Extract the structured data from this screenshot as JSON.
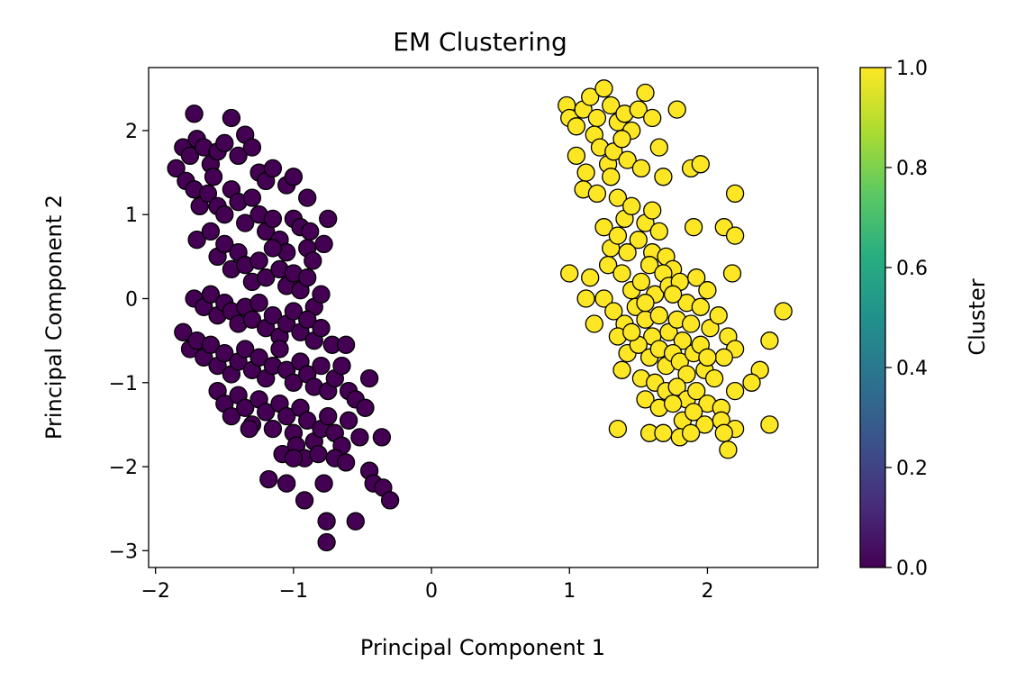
{
  "chart_data": {
    "type": "scatter",
    "title": "EM Clustering",
    "xlabel": "Principal Component 1",
    "ylabel": "Principal Component 2",
    "xlim": [
      -2.05,
      2.8
    ],
    "ylim": [
      -3.2,
      2.75
    ],
    "xticks": [
      -2,
      -1,
      0,
      1,
      2
    ],
    "xtick_labels": [
      "−2",
      "−1",
      "0",
      "1",
      "2"
    ],
    "yticks": [
      -3,
      -2,
      -1,
      0,
      1,
      2
    ],
    "ytick_labels": [
      "−3",
      "−2",
      "−1",
      "0",
      "1",
      "2"
    ],
    "grid": false,
    "legend": "none",
    "colorbar": {
      "label": "Cluster",
      "colormap": "viridis",
      "range": [
        0,
        1
      ],
      "ticks": [
        0,
        0.2,
        0.4,
        0.6,
        0.8,
        1.0
      ],
      "tick_labels": [
        "0.0",
        "0.2",
        "0.4",
        "0.6",
        "0.8",
        "1.0"
      ]
    },
    "colors": {
      "cluster_0": "#440154",
      "cluster_1": "#fde725",
      "edge": "#000000"
    },
    "series": [
      {
        "cluster": 0,
        "color": "#440154",
        "points": [
          [
            -1.85,
            1.55
          ],
          [
            -1.8,
            1.8
          ],
          [
            -1.75,
            1.7
          ],
          [
            -1.72,
            2.2
          ],
          [
            -1.7,
            1.9
          ],
          [
            -1.65,
            1.8
          ],
          [
            -1.6,
            1.6
          ],
          [
            -1.55,
            1.75
          ],
          [
            -1.5,
            1.85
          ],
          [
            -1.45,
            2.15
          ],
          [
            -1.4,
            1.7
          ],
          [
            -1.35,
            1.95
          ],
          [
            -1.3,
            1.8
          ],
          [
            -1.25,
            1.5
          ],
          [
            -1.2,
            1.4
          ],
          [
            -1.15,
            1.55
          ],
          [
            -1.05,
            1.35
          ],
          [
            -1.0,
            1.45
          ],
          [
            -0.9,
            1.2
          ],
          [
            -0.75,
            0.95
          ],
          [
            -1.78,
            1.4
          ],
          [
            -1.72,
            1.3
          ],
          [
            -1.68,
            1.1
          ],
          [
            -1.62,
            1.25
          ],
          [
            -1.58,
            1.45
          ],
          [
            -1.55,
            1.1
          ],
          [
            -1.5,
            1.0
          ],
          [
            -1.45,
            1.3
          ],
          [
            -1.4,
            1.15
          ],
          [
            -1.35,
            0.9
          ],
          [
            -1.3,
            1.2
          ],
          [
            -1.25,
            1.0
          ],
          [
            -1.2,
            0.8
          ],
          [
            -1.15,
            0.95
          ],
          [
            -1.1,
            0.7
          ],
          [
            -1.05,
            0.55
          ],
          [
            -1.0,
            0.95
          ],
          [
            -0.95,
            0.85
          ],
          [
            -0.9,
            0.6
          ],
          [
            -0.88,
            0.8
          ],
          [
            -0.86,
            0.45
          ],
          [
            -0.78,
            0.65
          ],
          [
            -1.7,
            0.7
          ],
          [
            -1.6,
            0.8
          ],
          [
            -1.55,
            0.5
          ],
          [
            -1.5,
            0.65
          ],
          [
            -1.45,
            0.35
          ],
          [
            -1.4,
            0.55
          ],
          [
            -1.35,
            0.4
          ],
          [
            -1.3,
            0.2
          ],
          [
            -1.25,
            0.45
          ],
          [
            -1.2,
            0.25
          ],
          [
            -1.15,
            0.6
          ],
          [
            -1.1,
            0.35
          ],
          [
            -1.05,
            0.15
          ],
          [
            -1.0,
            0.3
          ],
          [
            -0.95,
            0.1
          ],
          [
            -0.9,
            0.25
          ],
          [
            -0.85,
            -0.1
          ],
          [
            -0.8,
            0.05
          ],
          [
            -1.72,
            0.0
          ],
          [
            -1.65,
            -0.1
          ],
          [
            -1.6,
            0.05
          ],
          [
            -1.55,
            -0.2
          ],
          [
            -1.5,
            -0.05
          ],
          [
            -1.45,
            -0.15
          ],
          [
            -1.4,
            -0.3
          ],
          [
            -1.35,
            -0.1
          ],
          [
            -1.3,
            -0.25
          ],
          [
            -1.25,
            -0.05
          ],
          [
            -1.2,
            -0.35
          ],
          [
            -1.15,
            -0.2
          ],
          [
            -1.1,
            -0.45
          ],
          [
            -1.05,
            -0.3
          ],
          [
            -1.0,
            -0.15
          ],
          [
            -0.95,
            -0.4
          ],
          [
            -0.9,
            -0.25
          ],
          [
            -0.85,
            -0.5
          ],
          [
            -0.8,
            -0.35
          ],
          [
            -0.72,
            -0.55
          ],
          [
            -0.62,
            -0.55
          ],
          [
            -1.8,
            -0.4
          ],
          [
            -1.75,
            -0.6
          ],
          [
            -1.7,
            -0.5
          ],
          [
            -1.65,
            -0.7
          ],
          [
            -1.6,
            -0.55
          ],
          [
            -1.55,
            -0.8
          ],
          [
            -1.5,
            -0.65
          ],
          [
            -1.45,
            -0.9
          ],
          [
            -1.4,
            -0.75
          ],
          [
            -1.35,
            -0.6
          ],
          [
            -1.3,
            -0.85
          ],
          [
            -1.25,
            -0.7
          ],
          [
            -1.2,
            -0.95
          ],
          [
            -1.15,
            -0.8
          ],
          [
            -1.1,
            -0.6
          ],
          [
            -1.05,
            -0.85
          ],
          [
            -1.0,
            -1.0
          ],
          [
            -0.95,
            -0.75
          ],
          [
            -0.9,
            -0.9
          ],
          [
            -0.85,
            -1.05
          ],
          [
            -0.8,
            -0.8
          ],
          [
            -0.75,
            -1.1
          ],
          [
            -0.7,
            -0.95
          ],
          [
            -0.65,
            -0.8
          ],
          [
            -0.6,
            -1.1
          ],
          [
            -0.55,
            -1.2
          ],
          [
            -0.45,
            -0.95
          ],
          [
            -1.55,
            -1.1
          ],
          [
            -1.5,
            -1.25
          ],
          [
            -1.45,
            -1.4
          ],
          [
            -1.4,
            -1.15
          ],
          [
            -1.35,
            -1.3
          ],
          [
            -1.3,
            -1.5
          ],
          [
            -1.25,
            -1.2
          ],
          [
            -1.2,
            -1.35
          ],
          [
            -1.15,
            -1.55
          ],
          [
            -1.1,
            -1.25
          ],
          [
            -1.05,
            -1.4
          ],
          [
            -1.0,
            -1.6
          ],
          [
            -0.95,
            -1.3
          ],
          [
            -0.9,
            -1.45
          ],
          [
            -0.85,
            -1.7
          ],
          [
            -0.8,
            -1.55
          ],
          [
            -0.75,
            -1.4
          ],
          [
            -0.7,
            -1.6
          ],
          [
            -0.65,
            -1.75
          ],
          [
            -0.6,
            -1.45
          ],
          [
            -0.48,
            -1.3
          ],
          [
            -1.32,
            -1.55
          ],
          [
            -1.08,
            -1.85
          ],
          [
            -0.98,
            -1.75
          ],
          [
            -0.92,
            -1.9
          ],
          [
            -0.82,
            -1.85
          ],
          [
            -0.7,
            -1.9
          ],
          [
            -0.62,
            -1.95
          ],
          [
            -0.52,
            -1.65
          ],
          [
            -0.36,
            -1.65
          ],
          [
            -0.45,
            -2.05
          ],
          [
            -0.42,
            -2.2
          ],
          [
            -0.35,
            -2.25
          ],
          [
            -0.3,
            -2.4
          ],
          [
            -1.18,
            -2.15
          ],
          [
            -1.05,
            -2.2
          ],
          [
            -0.92,
            -2.4
          ],
          [
            -0.78,
            -2.2
          ],
          [
            -0.76,
            -2.65
          ],
          [
            -0.76,
            -2.9
          ],
          [
            -0.55,
            -2.65
          ],
          [
            -1.0,
            -1.9
          ]
        ]
      },
      {
        "cluster": 1,
        "color": "#fde725",
        "points": [
          [
            0.98,
            2.3
          ],
          [
            1.0,
            2.15
          ],
          [
            1.05,
            2.05
          ],
          [
            1.1,
            2.25
          ],
          [
            1.15,
            2.4
          ],
          [
            1.2,
            2.15
          ],
          [
            1.25,
            2.5
          ],
          [
            1.3,
            2.3
          ],
          [
            1.35,
            2.1
          ],
          [
            1.4,
            2.2
          ],
          [
            1.45,
            2.0
          ],
          [
            1.5,
            2.25
          ],
          [
            1.55,
            2.45
          ],
          [
            1.6,
            2.15
          ],
          [
            1.65,
            1.8
          ],
          [
            1.78,
            2.25
          ],
          [
            1.05,
            1.7
          ],
          [
            1.12,
            1.5
          ],
          [
            1.18,
            1.95
          ],
          [
            1.22,
            1.8
          ],
          [
            1.28,
            1.6
          ],
          [
            1.32,
            1.75
          ],
          [
            1.38,
            1.9
          ],
          [
            1.42,
            1.65
          ],
          [
            1.52,
            1.55
          ],
          [
            1.68,
            1.45
          ],
          [
            1.88,
            1.55
          ],
          [
            1.95,
            1.6
          ],
          [
            2.2,
            1.25
          ],
          [
            1.1,
            1.3
          ],
          [
            1.2,
            1.25
          ],
          [
            1.3,
            1.45
          ],
          [
            1.35,
            1.2
          ],
          [
            1.4,
            0.95
          ],
          [
            1.45,
            1.1
          ],
          [
            1.55,
            0.9
          ],
          [
            1.6,
            1.05
          ],
          [
            1.65,
            0.8
          ],
          [
            1.5,
            0.7
          ],
          [
            1.42,
            0.55
          ],
          [
            1.3,
            0.6
          ],
          [
            1.25,
            0.85
          ],
          [
            1.35,
            0.75
          ],
          [
            1.6,
            0.55
          ],
          [
            1.7,
            0.5
          ],
          [
            1.75,
            0.35
          ],
          [
            1.9,
            0.85
          ],
          [
            2.12,
            0.85
          ],
          [
            2.2,
            0.75
          ],
          [
            1.0,
            0.3
          ],
          [
            1.15,
            0.25
          ],
          [
            1.28,
            0.4
          ],
          [
            1.38,
            0.3
          ],
          [
            1.45,
            0.1
          ],
          [
            1.52,
            0.2
          ],
          [
            1.58,
            0.4
          ],
          [
            1.62,
            0.05
          ],
          [
            1.68,
            0.3
          ],
          [
            1.72,
            0.15
          ],
          [
            1.8,
            0.2
          ],
          [
            1.85,
            -0.05
          ],
          [
            1.92,
            0.25
          ],
          [
            2.0,
            0.1
          ],
          [
            2.18,
            0.3
          ],
          [
            2.55,
            -0.15
          ],
          [
            1.12,
            0.0
          ],
          [
            1.25,
            0.0
          ],
          [
            1.32,
            -0.15
          ],
          [
            1.4,
            -0.3
          ],
          [
            1.48,
            -0.1
          ],
          [
            1.55,
            -0.25
          ],
          [
            1.6,
            -0.45
          ],
          [
            1.65,
            -0.2
          ],
          [
            1.72,
            -0.4
          ],
          [
            1.78,
            -0.25
          ],
          [
            1.82,
            -0.5
          ],
          [
            1.88,
            -0.3
          ],
          [
            1.95,
            -0.1
          ],
          [
            2.02,
            -0.35
          ],
          [
            2.08,
            -0.2
          ],
          [
            2.15,
            -0.45
          ],
          [
            2.2,
            -0.6
          ],
          [
            1.18,
            -0.3
          ],
          [
            1.35,
            -0.45
          ],
          [
            1.42,
            -0.65
          ],
          [
            1.5,
            -0.55
          ],
          [
            1.58,
            -0.7
          ],
          [
            1.65,
            -0.6
          ],
          [
            1.7,
            -0.8
          ],
          [
            1.75,
            -0.65
          ],
          [
            1.8,
            -0.75
          ],
          [
            1.85,
            -0.9
          ],
          [
            1.9,
            -0.65
          ],
          [
            1.98,
            -0.85
          ],
          [
            2.05,
            -0.95
          ],
          [
            2.12,
            -0.7
          ],
          [
            2.45,
            -0.5
          ],
          [
            2.38,
            -0.85
          ],
          [
            1.38,
            -0.85
          ],
          [
            1.52,
            -0.95
          ],
          [
            1.62,
            -1.0
          ],
          [
            1.7,
            -1.1
          ],
          [
            1.78,
            -1.05
          ],
          [
            1.85,
            -1.2
          ],
          [
            1.92,
            -1.1
          ],
          [
            2.0,
            -1.25
          ],
          [
            2.1,
            -1.3
          ],
          [
            2.2,
            -1.1
          ],
          [
            2.32,
            -1.0
          ],
          [
            1.55,
            -1.2
          ],
          [
            1.65,
            -1.3
          ],
          [
            1.75,
            -1.25
          ],
          [
            1.82,
            -1.45
          ],
          [
            1.9,
            -1.35
          ],
          [
            1.98,
            -1.5
          ],
          [
            2.1,
            -1.45
          ],
          [
            2.2,
            -1.55
          ],
          [
            2.45,
            -1.5
          ],
          [
            1.35,
            -1.55
          ],
          [
            1.58,
            -1.6
          ],
          [
            1.68,
            -1.6
          ],
          [
            1.8,
            -1.65
          ],
          [
            1.88,
            -1.6
          ],
          [
            2.12,
            -1.6
          ],
          [
            2.15,
            -1.8
          ],
          [
            1.45,
            -0.4
          ],
          [
            1.55,
            -0.05
          ],
          [
            1.75,
            0.05
          ],
          [
            1.95,
            -0.55
          ],
          [
            2.0,
            -0.7
          ]
        ]
      }
    ]
  }
}
